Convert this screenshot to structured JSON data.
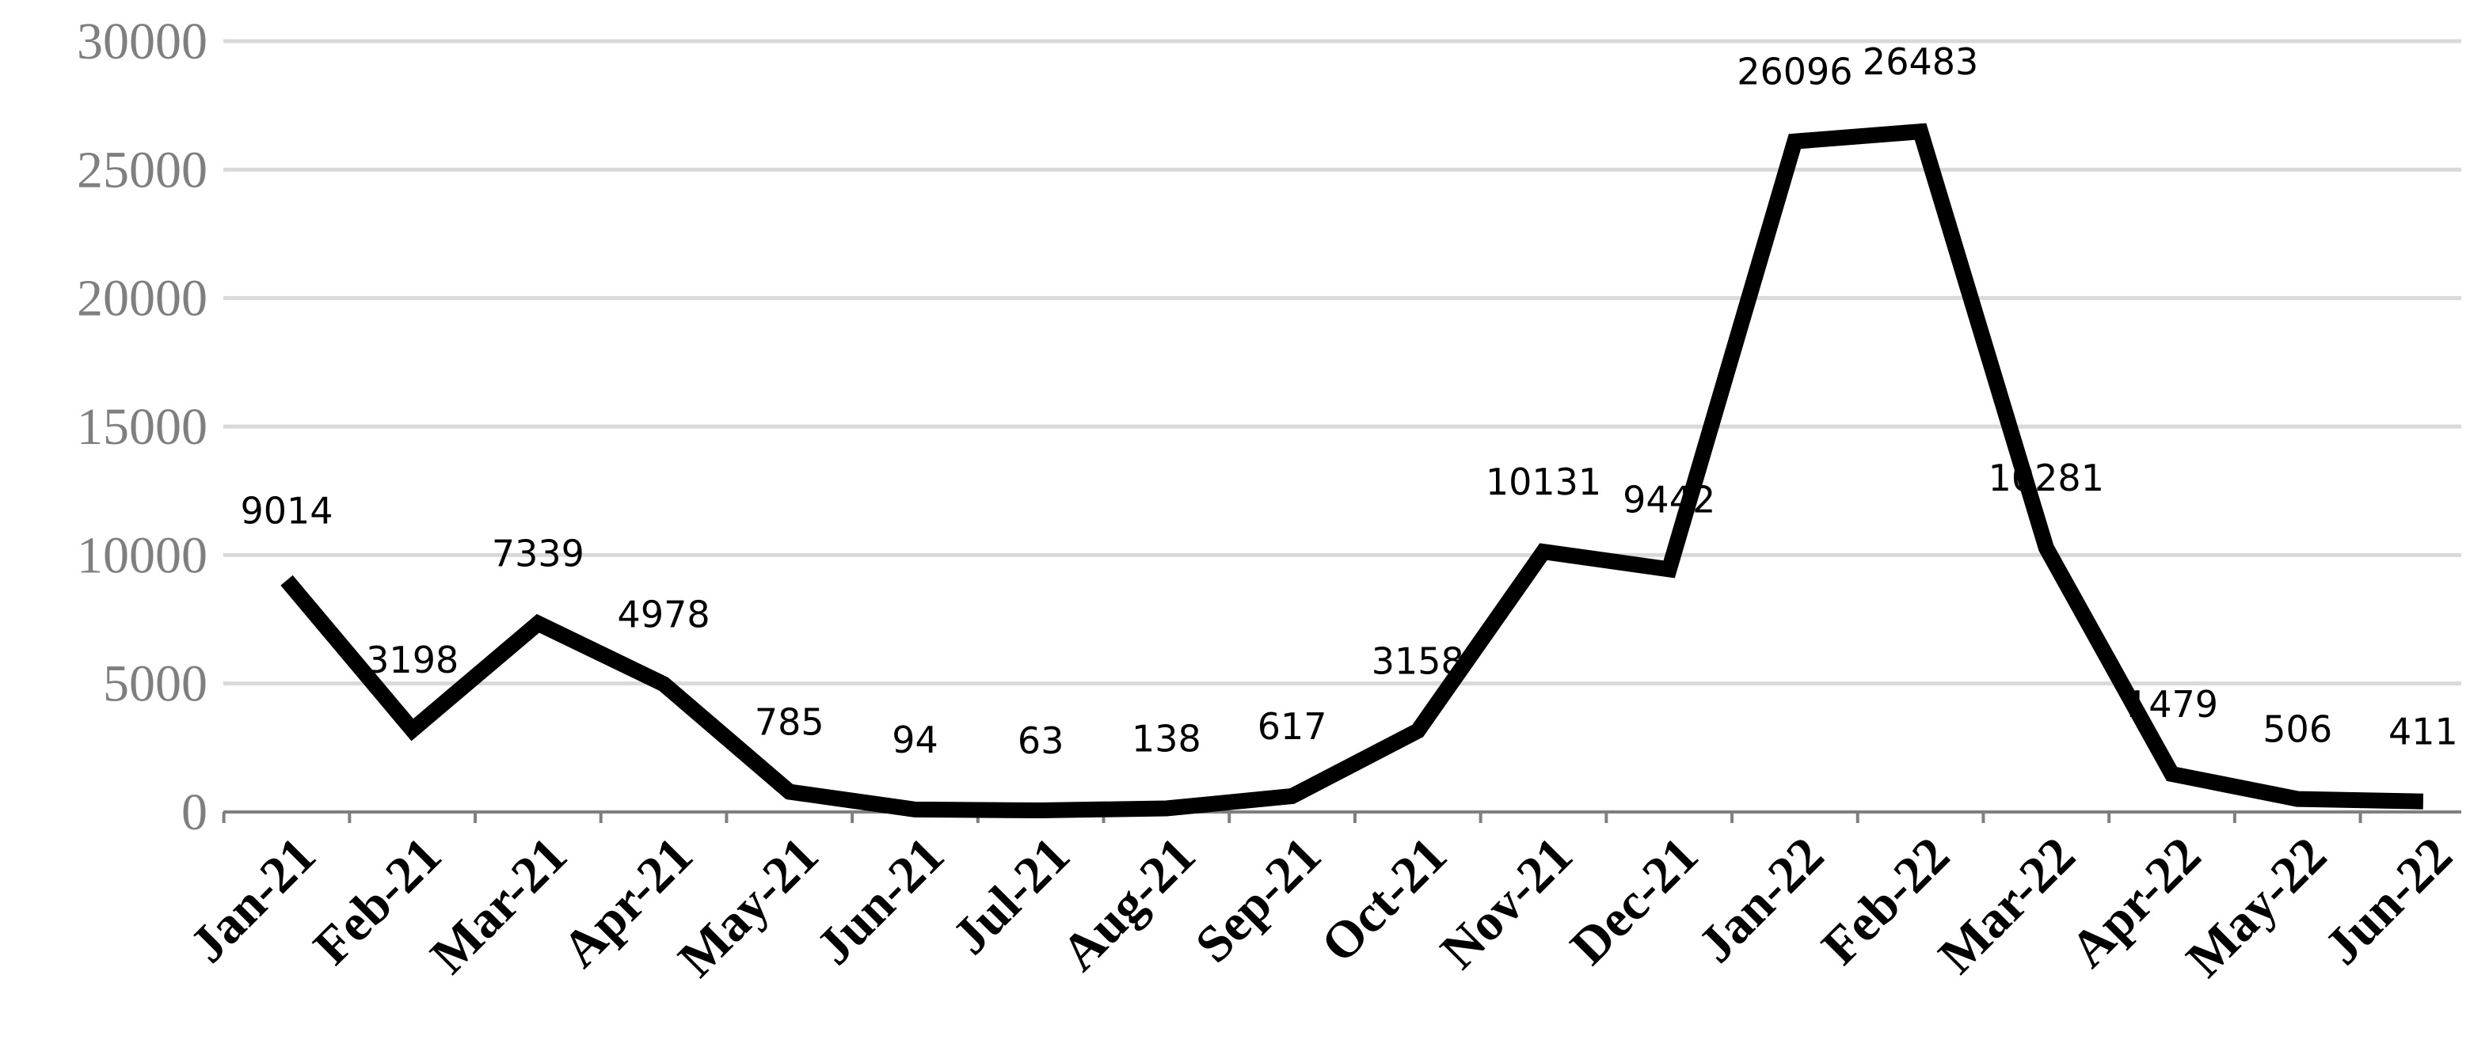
{
  "chart_data": {
    "type": "line",
    "title": "",
    "xlabel": "",
    "ylabel": "",
    "categories": [
      "Jan-21",
      "Feb-21",
      "Mar-21",
      "Apr-21",
      "May-21",
      "Jun-21",
      "Jul-21",
      "Aug-21",
      "Sep-21",
      "Oct-21",
      "Nov-21",
      "Dec-21",
      "Jan-22",
      "Feb-22",
      "Mar-22",
      "Apr-22",
      "May-22",
      "Jun-22"
    ],
    "series": [
      {
        "values": [
          9014,
          3198,
          7339,
          4978,
          785,
          94,
          63,
          138,
          617,
          3158,
          10131,
          9442,
          26096,
          26483,
          10281,
          1479,
          506,
          411
        ],
        "data_labels": [
          "9014",
          "3198",
          "7339",
          "4978",
          "785",
          "94",
          "63",
          "138",
          "617",
          "3158",
          "10131",
          "9442",
          "26096",
          "26483",
          "10281",
          "1479",
          "506",
          "411"
        ],
        "color": "#000000"
      }
    ],
    "ylim": [
      0,
      30000
    ],
    "yticks": [
      "0",
      "5000",
      "10000",
      "15000",
      "20000",
      "25000",
      "30000"
    ],
    "grid": true,
    "legend": "none"
  }
}
